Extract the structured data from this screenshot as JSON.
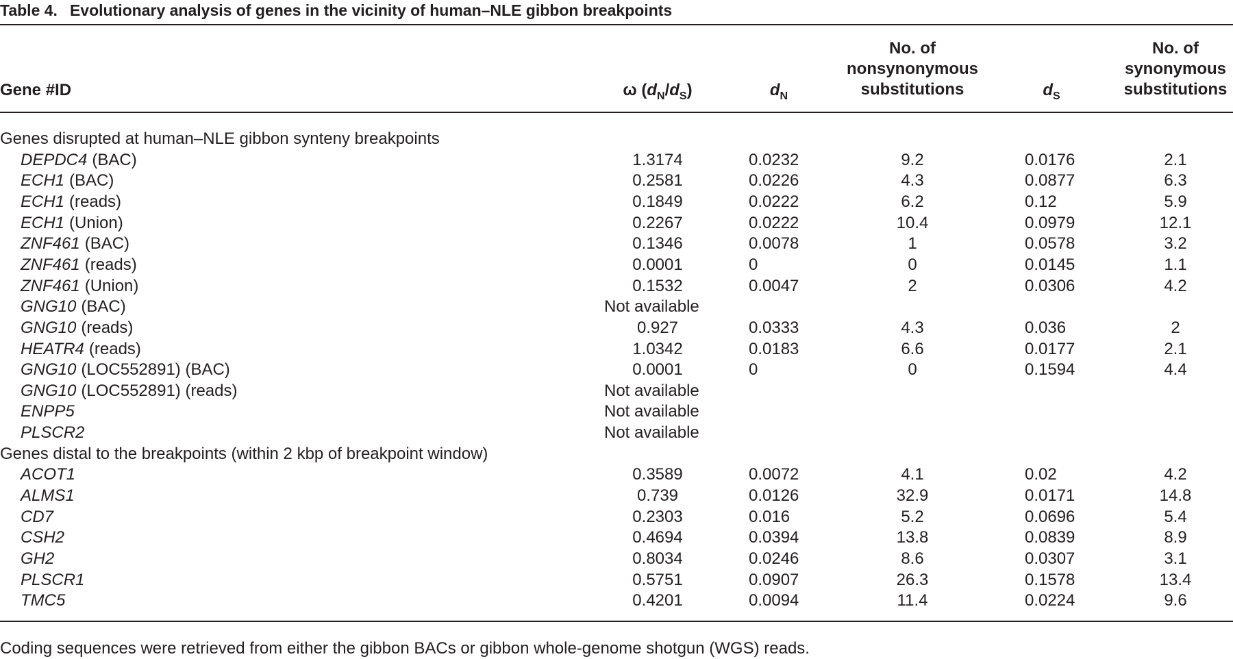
{
  "header": {
    "label": "Table 4.",
    "title": "Evolutionary analysis of genes in the vicinity of human–NLE gibbon breakpoints"
  },
  "columns": {
    "gene": "Gene #ID",
    "omega": [
      "ω (",
      "d",
      "N",
      "/",
      "d",
      "S",
      ")"
    ],
    "dN": [
      "d",
      "N"
    ],
    "nonsyn": [
      "No. of",
      "nonsynonymous",
      "substitutions"
    ],
    "dS": [
      "d",
      "S"
    ],
    "syn": [
      "No. of",
      "synonymous",
      "substitutions"
    ]
  },
  "table": {
    "groups": [
      {
        "heading": "Genes disrupted at human–NLE gibbon synteny breakpoints",
        "rows": [
          {
            "gene": "DEPDC4",
            "note": "(BAC)",
            "omega": 1.3174,
            "dN": 0.0232,
            "nonsyn": 9.2,
            "dS": 0.0176,
            "syn": 2.1
          },
          {
            "gene": "ECH1",
            "note": "(BAC)",
            "omega": 0.2581,
            "dN": 0.0226,
            "nonsyn": 4.3,
            "dS": 0.0877,
            "syn": 6.3
          },
          {
            "gene": "ECH1",
            "note": "(reads)",
            "omega": 0.1849,
            "dN": 0.0222,
            "nonsyn": 6.2,
            "dS": 0.12,
            "syn": 5.9
          },
          {
            "gene": "ECH1",
            "note": "(Union)",
            "omega": 0.2267,
            "dN": 0.0222,
            "nonsyn": 10.4,
            "dS": 0.0979,
            "syn": 12.1
          },
          {
            "gene": "ZNF461",
            "note": "(BAC)",
            "omega": 0.1346,
            "dN": 0.0078,
            "nonsyn": 1,
            "dS": 0.0578,
            "syn": 3.2
          },
          {
            "gene": "ZNF461",
            "note": "(reads)",
            "omega": 0.0001,
            "dN": 0,
            "nonsyn": 0,
            "dS": 0.0145,
            "syn": 1.1
          },
          {
            "gene": "ZNF461",
            "note": "(Union)",
            "omega": 0.1532,
            "dN": 0.0047,
            "nonsyn": 2,
            "dS": 0.0306,
            "syn": 4.2
          },
          {
            "gene": "GNG10",
            "note": "(BAC)",
            "status": "Not available"
          },
          {
            "gene": "GNG10",
            "note": "(reads)",
            "omega": 0.927,
            "dN": 0.0333,
            "nonsyn": 4.3,
            "dS": 0.036,
            "syn": 2
          },
          {
            "gene": "HEATR4",
            "note": "(reads)",
            "omega": 1.0342,
            "dN": 0.0183,
            "nonsyn": 6.6,
            "dS": 0.0177,
            "syn": 2.1
          },
          {
            "gene": "GNG10",
            "note": "(LOC552891) (BAC)",
            "omega": 0.0001,
            "dN": 0,
            "nonsyn": 0,
            "dS": 0.1594,
            "syn": 4.4
          },
          {
            "gene": "GNG10",
            "note": "(LOC552891) (reads)",
            "status": "Not available"
          },
          {
            "gene": "ENPP5",
            "status": "Not available"
          },
          {
            "gene": "PLSCR2",
            "status": "Not available"
          }
        ]
      },
      {
        "heading": "Genes distal to the breakpoints (within 2 kbp of breakpoint window)",
        "rows": [
          {
            "gene": "ACOT1",
            "omega": 0.3589,
            "dN": 0.0072,
            "nonsyn": 4.1,
            "dS": 0.02,
            "syn": 4.2
          },
          {
            "gene": "ALMS1",
            "omega": 0.739,
            "dN": 0.0126,
            "nonsyn": 32.9,
            "dS": 0.0171,
            "syn": 14.8
          },
          {
            "gene": "CD7",
            "omega": 0.2303,
            "dN": 0.016,
            "nonsyn": 5.2,
            "dS": 0.0696,
            "syn": 5.4
          },
          {
            "gene": "CSH2",
            "omega": 0.4694,
            "dN": 0.0394,
            "nonsyn": 13.8,
            "dS": 0.0839,
            "syn": 8.9
          },
          {
            "gene": "GH2",
            "omega": 0.8034,
            "dN": 0.0246,
            "nonsyn": 8.6,
            "dS": 0.0307,
            "syn": 3.1
          },
          {
            "gene": "PLSCR1",
            "omega": 0.5751,
            "dN": 0.0907,
            "nonsyn": 26.3,
            "dS": 0.1578,
            "syn": 13.4
          },
          {
            "gene": "TMC5",
            "omega": 0.4201,
            "dN": 0.0094,
            "nonsyn": 11.4,
            "dS": 0.0224,
            "syn": 9.6
          }
        ]
      }
    ]
  },
  "footnote": "Coding sequences were retrieved from either the gibbon BACs or gibbon whole-genome shotgun (WGS) reads."
}
